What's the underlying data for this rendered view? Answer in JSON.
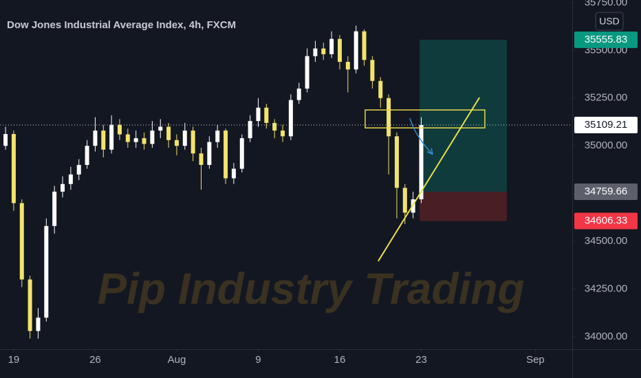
{
  "chart_data": {
    "type": "candlestick",
    "title": "Dow Jones Industrial Average Index, 4h, FXCM",
    "watermark": "Pip Industry Trading",
    "currency": "USD",
    "up_color": "#ffffff",
    "down_color": "#f2e36b",
    "x": [
      -0.5,
      0,
      0.5,
      1,
      1.5,
      2,
      2.5,
      3,
      3.5,
      4,
      4.5,
      5,
      5.5,
      6,
      6.5,
      7,
      7.5,
      8,
      8.5,
      9,
      9.5,
      10,
      10.5,
      11,
      11.5,
      12,
      12.5,
      13,
      13.5,
      14,
      14.5,
      15,
      15.5,
      16,
      16.5,
      17,
      17.5,
      18,
      18.5,
      19,
      19.5,
      20,
      20.5,
      21,
      21.5,
      22,
      22.5,
      23,
      23.5,
      24,
      24.5,
      25
    ],
    "open": [
      35000,
      35062,
      34700,
      34300,
      34030,
      34100,
      34580,
      34760,
      34800,
      34850,
      34900,
      35000,
      35080,
      34980,
      35110,
      35060,
      35020,
      35040,
      35010,
      35080,
      35100,
      35030,
      35000,
      35080,
      34960,
      34900,
      35020,
      35080,
      34830,
      34880,
      35040,
      35130,
      35200,
      35120,
      35080,
      35050,
      35240,
      35300,
      35470,
      35510,
      35480,
      35560,
      35440,
      35400,
      35600,
      35450,
      35340,
      35250,
      35050,
      34780,
      34650,
      34720
    ],
    "high": [
      35100,
      35080,
      34720,
      34320,
      34150,
      34620,
      34790,
      34840,
      34890,
      34930,
      35030,
      35150,
      35110,
      35160,
      35140,
      35090,
      35080,
      35070,
      35130,
      35140,
      35120,
      35060,
      35120,
      35100,
      34990,
      35050,
      35110,
      35090,
      34910,
      35060,
      35160,
      35250,
      35220,
      35140,
      35110,
      35270,
      35330,
      35510,
      35550,
      35540,
      35600,
      35580,
      35470,
      35630,
      35610,
      35470,
      35360,
      35270,
      35070,
      34800,
      34760,
      35150
    ],
    "low": [
      34980,
      34660,
      34260,
      33990,
      33990,
      34080,
      34540,
      34730,
      34770,
      34820,
      34880,
      34970,
      34940,
      34960,
      35030,
      34990,
      34990,
      34980,
      34990,
      35040,
      34990,
      34950,
      34980,
      34920,
      34770,
      34880,
      34990,
      34800,
      34800,
      34860,
      35020,
      35100,
      35090,
      35040,
      35020,
      35030,
      35220,
      35280,
      35440,
      35450,
      35460,
      35400,
      35280,
      35380,
      35420,
      35300,
      35200,
      34850,
      34620,
      34590,
      34620,
      34700
    ],
    "close": [
      35062,
      34700,
      34300,
      34030,
      34100,
      34580,
      34760,
      34800,
      34850,
      34900,
      35000,
      35080,
      34980,
      35110,
      35060,
      35020,
      35040,
      35010,
      35080,
      35100,
      35030,
      35000,
      35080,
      34960,
      34900,
      35020,
      35080,
      34830,
      34880,
      35040,
      35130,
      35200,
      35120,
      35080,
      35050,
      35240,
      35300,
      35470,
      35510,
      35480,
      35560,
      35440,
      35400,
      35600,
      35450,
      35340,
      35250,
      35050,
      34780,
      34650,
      34720,
      35109
    ],
    "xlim": [
      -0.84,
      34.26
    ],
    "xticks": [
      {
        "value": 0,
        "label": "19"
      },
      {
        "value": 5,
        "label": "26"
      },
      {
        "value": 10,
        "label": "Aug"
      },
      {
        "value": 15,
        "label": "9"
      },
      {
        "value": 20,
        "label": "16"
      },
      {
        "value": 25,
        "label": "23"
      },
      {
        "value": 32,
        "label": "Sep"
      }
    ],
    "ylim": [
      33935,
      35764
    ],
    "yticks": [
      {
        "value": 35750,
        "label": "35750.00"
      },
      {
        "value": 35500,
        "label": "35500.00"
      },
      {
        "value": 35250,
        "label": "35250.00"
      },
      {
        "value": 35000,
        "label": "35000.00"
      },
      {
        "value": 34750,
        "label": "34750.00"
      },
      {
        "value": 34500,
        "label": "34500.00"
      },
      {
        "value": 34250,
        "label": "34250.00"
      },
      {
        "value": 34000,
        "label": "34000.00"
      }
    ],
    "last_price": 35109.21,
    "position": {
      "x": [
        24.9,
        30.25
      ],
      "target": 35555.83,
      "entry": 34759.66,
      "stop": 34606.33,
      "target_color": "#0f3b3c",
      "stop_color": "#4a1e25"
    },
    "zone": {
      "x": [
        21.56,
        28.9
      ],
      "y": [
        35094,
        35188
      ],
      "color": "#e8d84a"
    },
    "trend_line": {
      "x": [
        22.36,
        28.57
      ],
      "y": [
        34396,
        35253
      ],
      "color": "#e8e04a"
    },
    "arrow": {
      "x": [
        24.3,
        25.7
      ],
      "y": [
        35145,
        34955
      ],
      "color": "#2f8fd8"
    }
  }
}
